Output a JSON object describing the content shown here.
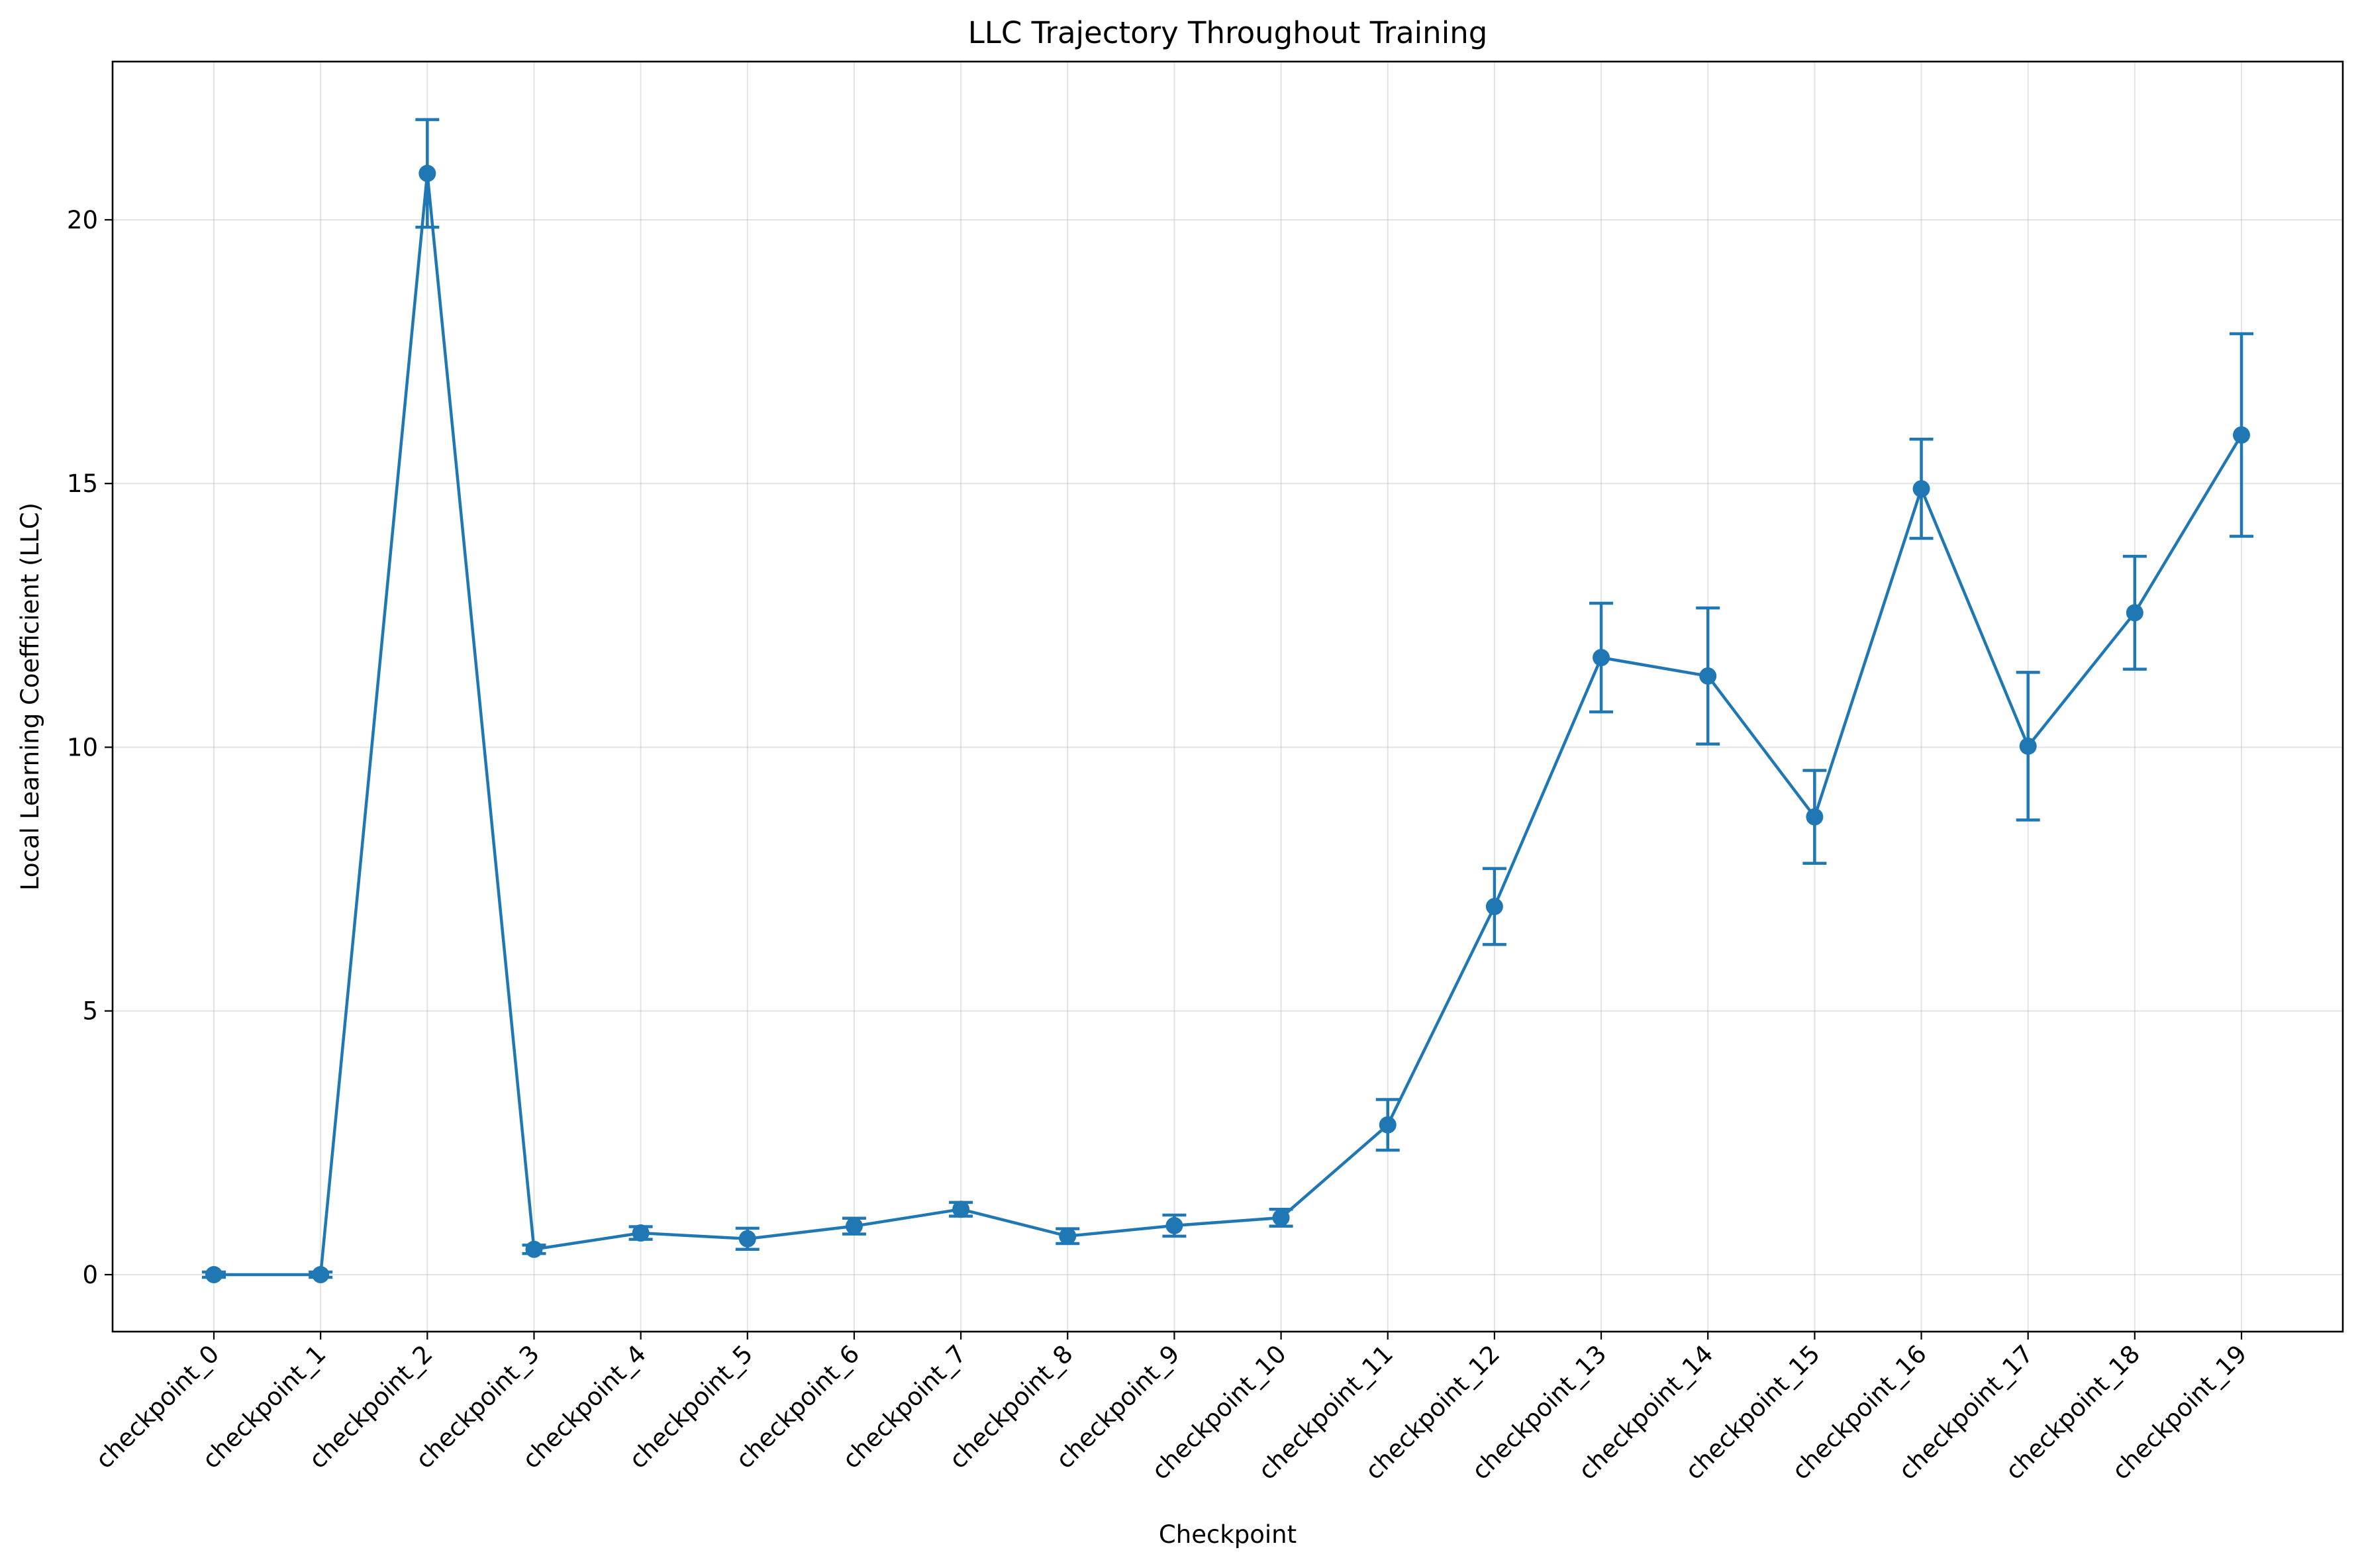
{
  "chart_data": {
    "type": "line",
    "title": "LLC Trajectory Throughout Training",
    "xlabel": "Checkpoint",
    "ylabel": "Local Learning Coefficient (LLC)",
    "categories": [
      "checkpoint_0",
      "checkpoint_1",
      "checkpoint_2",
      "checkpoint_3",
      "checkpoint_4",
      "checkpoint_5",
      "checkpoint_6",
      "checkpoint_7",
      "checkpoint_8",
      "checkpoint_9",
      "checkpoint_10",
      "checkpoint_11",
      "checkpoint_12",
      "checkpoint_13",
      "checkpoint_14",
      "checkpoint_15",
      "checkpoint_16",
      "checkpoint_17",
      "checkpoint_18",
      "checkpoint_19"
    ],
    "series": [
      {
        "values": [
          0.0,
          0.0,
          20.88,
          0.48,
          0.79,
          0.68,
          0.92,
          1.24,
          0.73,
          0.93,
          1.08,
          2.84,
          6.98,
          11.7,
          11.35,
          8.68,
          14.9,
          10.02,
          12.55,
          15.92
        ],
        "errors": [
          0.05,
          0.05,
          1.02,
          0.08,
          0.12,
          0.2,
          0.15,
          0.13,
          0.14,
          0.2,
          0.16,
          0.48,
          0.72,
          1.03,
          1.29,
          0.88,
          0.94,
          1.4,
          1.07,
          1.92
        ],
        "color": "#1f77b4"
      }
    ],
    "ylim": [
      -1.08,
      23.0
    ],
    "yticks": [
      0,
      5,
      10,
      15,
      20
    ],
    "grid": true,
    "legend": "none"
  }
}
